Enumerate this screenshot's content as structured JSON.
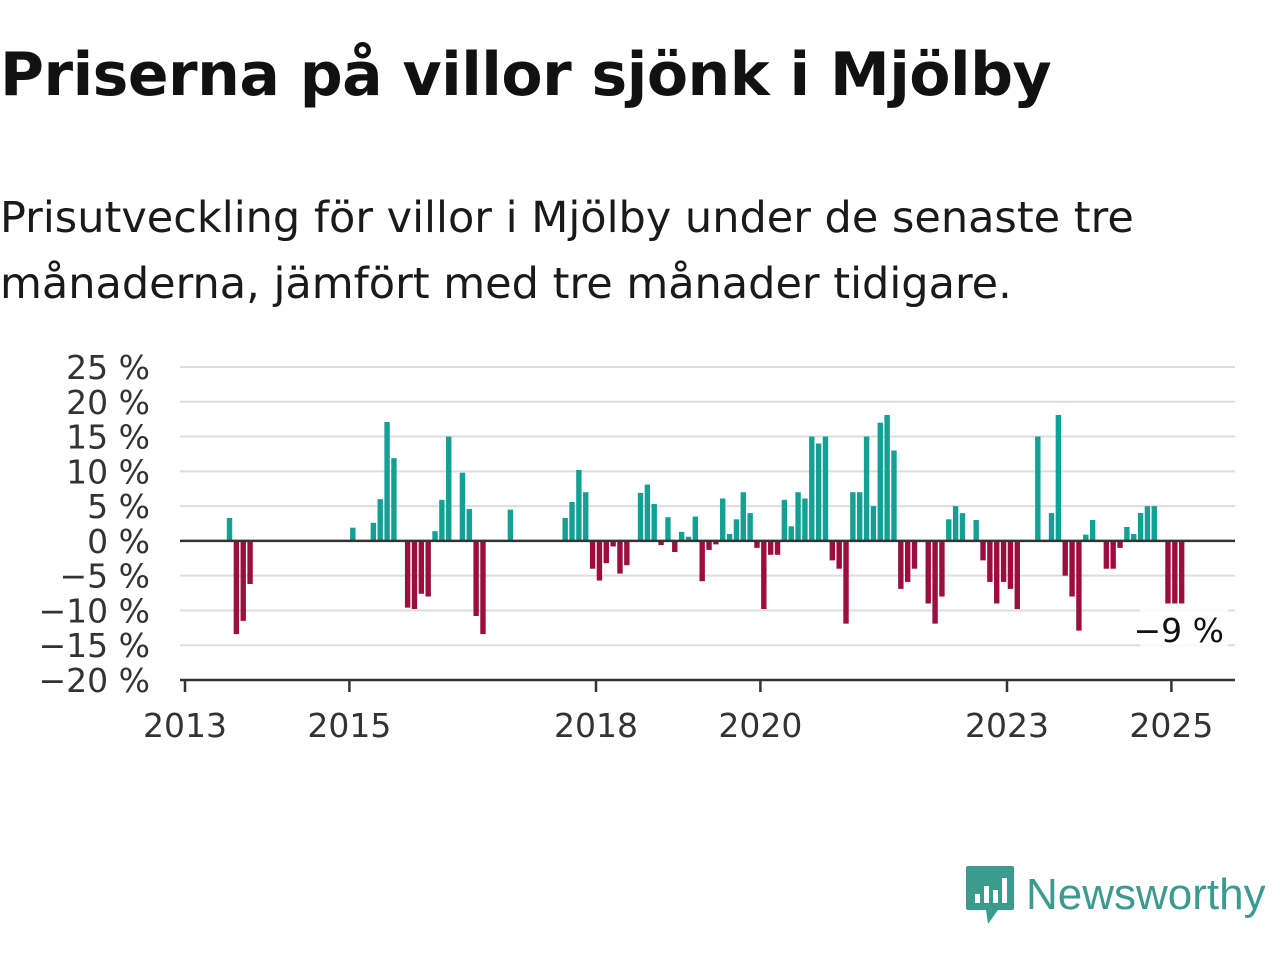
{
  "header": {
    "title": "Priserna på villor sjönk i Mjölby",
    "subtitle": "Prisutveckling för villor i Mjölby under de senaste tre månaderna, jämfört med tre månader tidigare."
  },
  "brand": {
    "name": "Newsworthy",
    "icon": "newsworthy-logo-icon",
    "color": "#3a9b8e"
  },
  "colors": {
    "positive": "#14a095",
    "negative": "#9b0e3e",
    "zero_line": "#333333",
    "grid": "#dddddd"
  },
  "chart_data": {
    "type": "bar",
    "title": "Priserna på villor sjönk i Mjölby",
    "xlabel": "",
    "ylabel": "",
    "ylim": [
      -20,
      25
    ],
    "y_ticks": [
      25,
      20,
      15,
      10,
      5,
      0,
      -5,
      -10,
      -15,
      -20
    ],
    "y_tick_labels": [
      "25 %",
      "20 %",
      "15 %",
      "10 %",
      "5 %",
      "0 %",
      "−5 %",
      "−10 %",
      "−15 %",
      "−20 %"
    ],
    "x_ticks": [
      {
        "date": "2013-01",
        "label": "2013"
      },
      {
        "date": "2015-01",
        "label": "2015"
      },
      {
        "date": "2018-01",
        "label": "2018"
      },
      {
        "date": "2020-01",
        "label": "2020"
      },
      {
        "date": "2023-01",
        "label": "2023"
      },
      {
        "date": "2025-01",
        "label": "2025"
      }
    ],
    "grid": true,
    "end_label": "−9 %",
    "series": [
      {
        "values": [
          {
            "date": "2013-07",
            "value": 3.3
          },
          {
            "date": "2013-08",
            "value": -13.4
          },
          {
            "date": "2013-09",
            "value": -11.5
          },
          {
            "date": "2013-10",
            "value": -6.2
          },
          {
            "date": "2015-01",
            "value": 1.9
          },
          {
            "date": "2015-04",
            "value": 2.6
          },
          {
            "date": "2015-05",
            "value": 6.0
          },
          {
            "date": "2015-06",
            "value": 17.1
          },
          {
            "date": "2015-07",
            "value": 11.9
          },
          {
            "date": "2015-09",
            "value": -9.6
          },
          {
            "date": "2015-10",
            "value": -9.8
          },
          {
            "date": "2015-11",
            "value": -7.6
          },
          {
            "date": "2015-12",
            "value": -8.0
          },
          {
            "date": "2016-01",
            "value": 1.4
          },
          {
            "date": "2016-02",
            "value": 5.9
          },
          {
            "date": "2016-03",
            "value": 15.0
          },
          {
            "date": "2016-05",
            "value": 9.8
          },
          {
            "date": "2016-06",
            "value": 4.6
          },
          {
            "date": "2016-07",
            "value": -10.8
          },
          {
            "date": "2016-08",
            "value": -13.4
          },
          {
            "date": "2016-12",
            "value": 4.5
          },
          {
            "date": "2017-08",
            "value": 3.3
          },
          {
            "date": "2017-09",
            "value": 5.6
          },
          {
            "date": "2017-10",
            "value": 10.2
          },
          {
            "date": "2017-11",
            "value": 7.0
          },
          {
            "date": "2017-12",
            "value": -4.0
          },
          {
            "date": "2018-01",
            "value": -5.7
          },
          {
            "date": "2018-02",
            "value": -3.2
          },
          {
            "date": "2018-03",
            "value": -0.8
          },
          {
            "date": "2018-04",
            "value": -4.7
          },
          {
            "date": "2018-05",
            "value": -3.5
          },
          {
            "date": "2018-07",
            "value": 6.9
          },
          {
            "date": "2018-08",
            "value": 8.1
          },
          {
            "date": "2018-09",
            "value": 5.3
          },
          {
            "date": "2018-10",
            "value": -0.6
          },
          {
            "date": "2018-11",
            "value": 3.4
          },
          {
            "date": "2018-12",
            "value": -1.6
          },
          {
            "date": "2019-01",
            "value": 1.3
          },
          {
            "date": "2019-02",
            "value": 0.6
          },
          {
            "date": "2019-03",
            "value": 3.5
          },
          {
            "date": "2019-04",
            "value": -5.8
          },
          {
            "date": "2019-05",
            "value": -1.3
          },
          {
            "date": "2019-06",
            "value": -0.5
          },
          {
            "date": "2019-07",
            "value": 6.1
          },
          {
            "date": "2019-08",
            "value": 1.0
          },
          {
            "date": "2019-09",
            "value": 3.1
          },
          {
            "date": "2019-10",
            "value": 7.0
          },
          {
            "date": "2019-11",
            "value": 4.0
          },
          {
            "date": "2019-12",
            "value": -1.0
          },
          {
            "date": "2020-01",
            "value": -9.8
          },
          {
            "date": "2020-02",
            "value": -2.0
          },
          {
            "date": "2020-03",
            "value": -2.0
          },
          {
            "date": "2020-04",
            "value": 5.9
          },
          {
            "date": "2020-05",
            "value": 2.1
          },
          {
            "date": "2020-06",
            "value": 7.0
          },
          {
            "date": "2020-07",
            "value": 6.1
          },
          {
            "date": "2020-08",
            "value": 15.0
          },
          {
            "date": "2020-09",
            "value": 14.0
          },
          {
            "date": "2020-10",
            "value": 15.0
          },
          {
            "date": "2020-11",
            "value": -2.8
          },
          {
            "date": "2020-12",
            "value": -4.0
          },
          {
            "date": "2021-01",
            "value": -11.9
          },
          {
            "date": "2021-02",
            "value": 7.0
          },
          {
            "date": "2021-03",
            "value": 7.0
          },
          {
            "date": "2021-04",
            "value": 15.0
          },
          {
            "date": "2021-05",
            "value": 5.0
          },
          {
            "date": "2021-06",
            "value": 17.0
          },
          {
            "date": "2021-07",
            "value": 18.1
          },
          {
            "date": "2021-08",
            "value": 13.0
          },
          {
            "date": "2021-09",
            "value": -6.9
          },
          {
            "date": "2021-10",
            "value": -5.9
          },
          {
            "date": "2021-11",
            "value": -4.0
          },
          {
            "date": "2022-01",
            "value": -9.0
          },
          {
            "date": "2022-02",
            "value": -11.9
          },
          {
            "date": "2022-03",
            "value": -8.0
          },
          {
            "date": "2022-04",
            "value": 3.1
          },
          {
            "date": "2022-05",
            "value": 5.0
          },
          {
            "date": "2022-06",
            "value": 4.0
          },
          {
            "date": "2022-08",
            "value": 3.0
          },
          {
            "date": "2022-09",
            "value": -2.8
          },
          {
            "date": "2022-10",
            "value": -5.9
          },
          {
            "date": "2022-11",
            "value": -9.0
          },
          {
            "date": "2022-12",
            "value": -5.9
          },
          {
            "date": "2023-01",
            "value": -6.9
          },
          {
            "date": "2023-02",
            "value": -9.8
          },
          {
            "date": "2023-05",
            "value": 15.0
          },
          {
            "date": "2023-07",
            "value": 4.0
          },
          {
            "date": "2023-08",
            "value": 18.1
          },
          {
            "date": "2023-09",
            "value": -5.0
          },
          {
            "date": "2023-10",
            "value": -8.0
          },
          {
            "date": "2023-11",
            "value": -12.9
          },
          {
            "date": "2023-12",
            "value": 0.9
          },
          {
            "date": "2024-01",
            "value": 3.0
          },
          {
            "date": "2024-03",
            "value": -4.0
          },
          {
            "date": "2024-04",
            "value": -4.0
          },
          {
            "date": "2024-05",
            "value": -1.0
          },
          {
            "date": "2024-06",
            "value": 2.0
          },
          {
            "date": "2024-07",
            "value": 1.0
          },
          {
            "date": "2024-08",
            "value": 4.0
          },
          {
            "date": "2024-09",
            "value": 5.0
          },
          {
            "date": "2024-10",
            "value": 5.0
          },
          {
            "date": "2024-12",
            "value": -9.0
          },
          {
            "date": "2025-01",
            "value": -9.0
          },
          {
            "date": "2025-02",
            "value": -9.0
          }
        ]
      }
    ]
  }
}
